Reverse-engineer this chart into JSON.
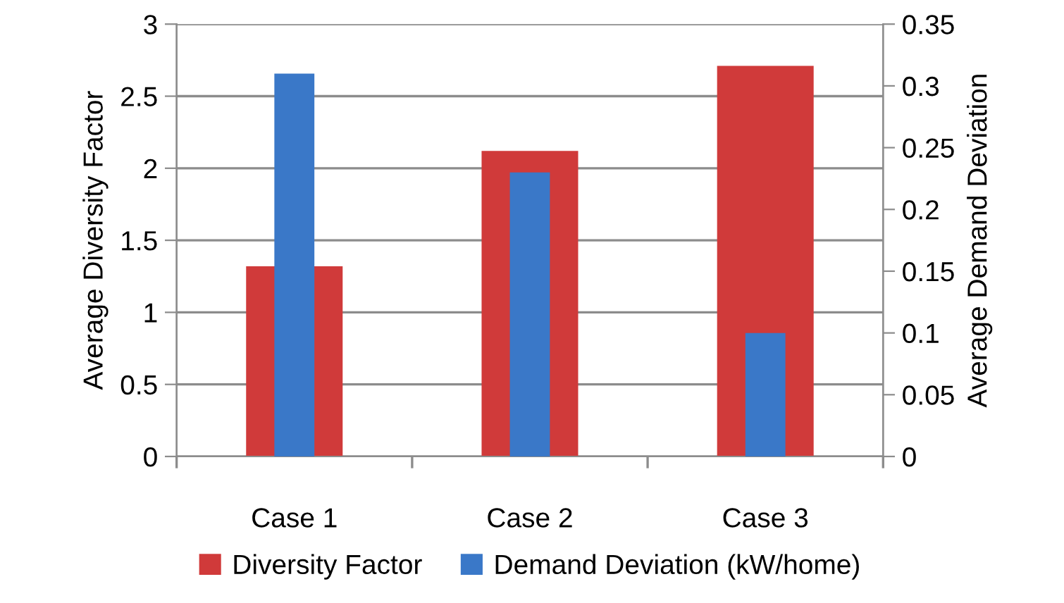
{
  "chart_data": {
    "type": "bar",
    "ylabel": "Average Diversity Factor",
    "y2label": "Average Demand Deviation",
    "categories": [
      "Case 1",
      "Case 2",
      "Case 3"
    ],
    "series": [
      {
        "name": "Diversity Factor",
        "color": "#d03a3a",
        "values": [
          1.32,
          2.12,
          2.71
        ]
      },
      {
        "name": "Demand Deviation (kW/home)",
        "color": "#3a78c8",
        "values": [
          0.31,
          0.23,
          0.1
        ],
        "axis": "y2"
      }
    ],
    "ylim": [
      0,
      3
    ],
    "yticks": [
      0,
      0.5,
      1,
      1.5,
      2,
      2.5,
      3
    ],
    "y2lim": [
      0,
      0.35
    ],
    "y2ticks": [
      0,
      0.05,
      0.1,
      0.15,
      0.2,
      0.25,
      0.3,
      0.35
    ],
    "grid": "y",
    "legend": "bottom"
  }
}
